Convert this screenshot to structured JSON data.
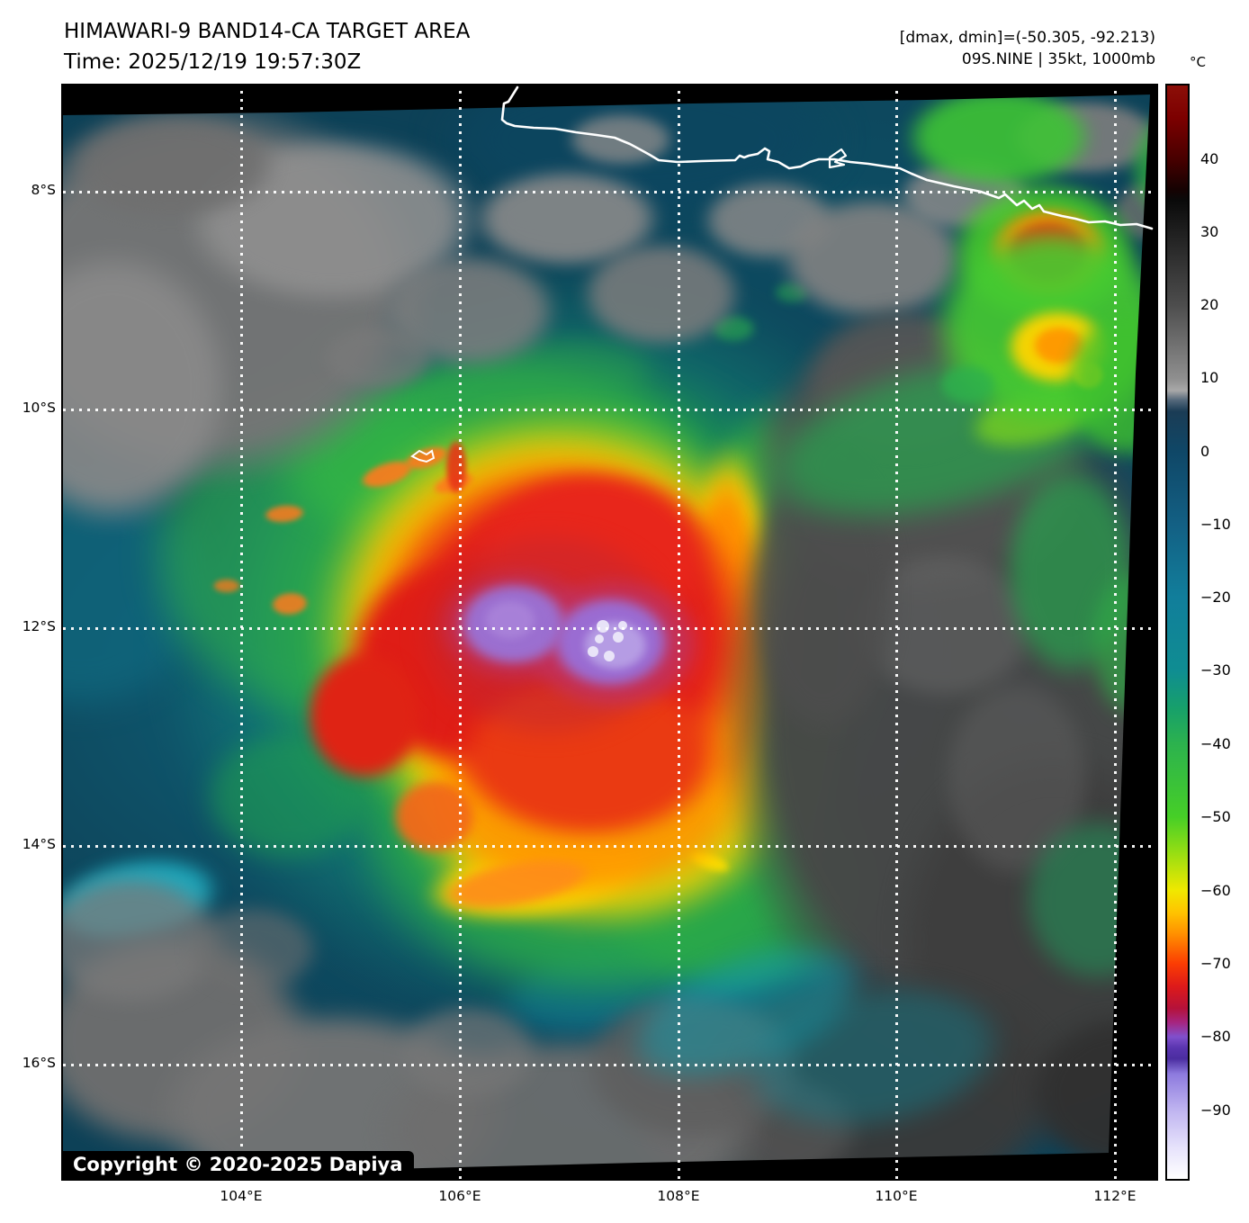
{
  "header": {
    "title": "HIMAWARI-9 BAND14-CA TARGET AREA",
    "time": "Time: 2025/12/19 19:57:30Z"
  },
  "annotations": {
    "range": "[dmax, dmin]=(-50.305, -92.213)",
    "storm": "09S.NINE | 35kt, 1000mb"
  },
  "colorbar": {
    "unit": "°C",
    "ticks": [
      "40",
      "30",
      "20",
      "10",
      "0",
      "−10",
      "−20",
      "−30",
      "−40",
      "−50",
      "−60",
      "−70",
      "−80",
      "−90"
    ]
  },
  "axes": {
    "lat": [
      "8°S",
      "10°S",
      "12°S",
      "14°S",
      "16°S"
    ],
    "lon": [
      "104°E",
      "106°E",
      "108°E",
      "110°E",
      "112°E"
    ]
  },
  "footer": {
    "copyright": "Copyright © 2020-2025 Dapiya"
  },
  "colors": {
    "ocean_deep": "#0d4157",
    "ocean_teal": "#117e9b",
    "cloud_gray_light": "#8a8a8a",
    "cloud_gray_dark": "#3e3e3e",
    "convection_green": "#2cb24e",
    "convection_yellow": "#f0e800",
    "convection_orange": "#ff9000",
    "convection_red": "#e32119",
    "cold_overshoot_purple": "#9a6cd2",
    "coastline_white": "#ffffff"
  }
}
